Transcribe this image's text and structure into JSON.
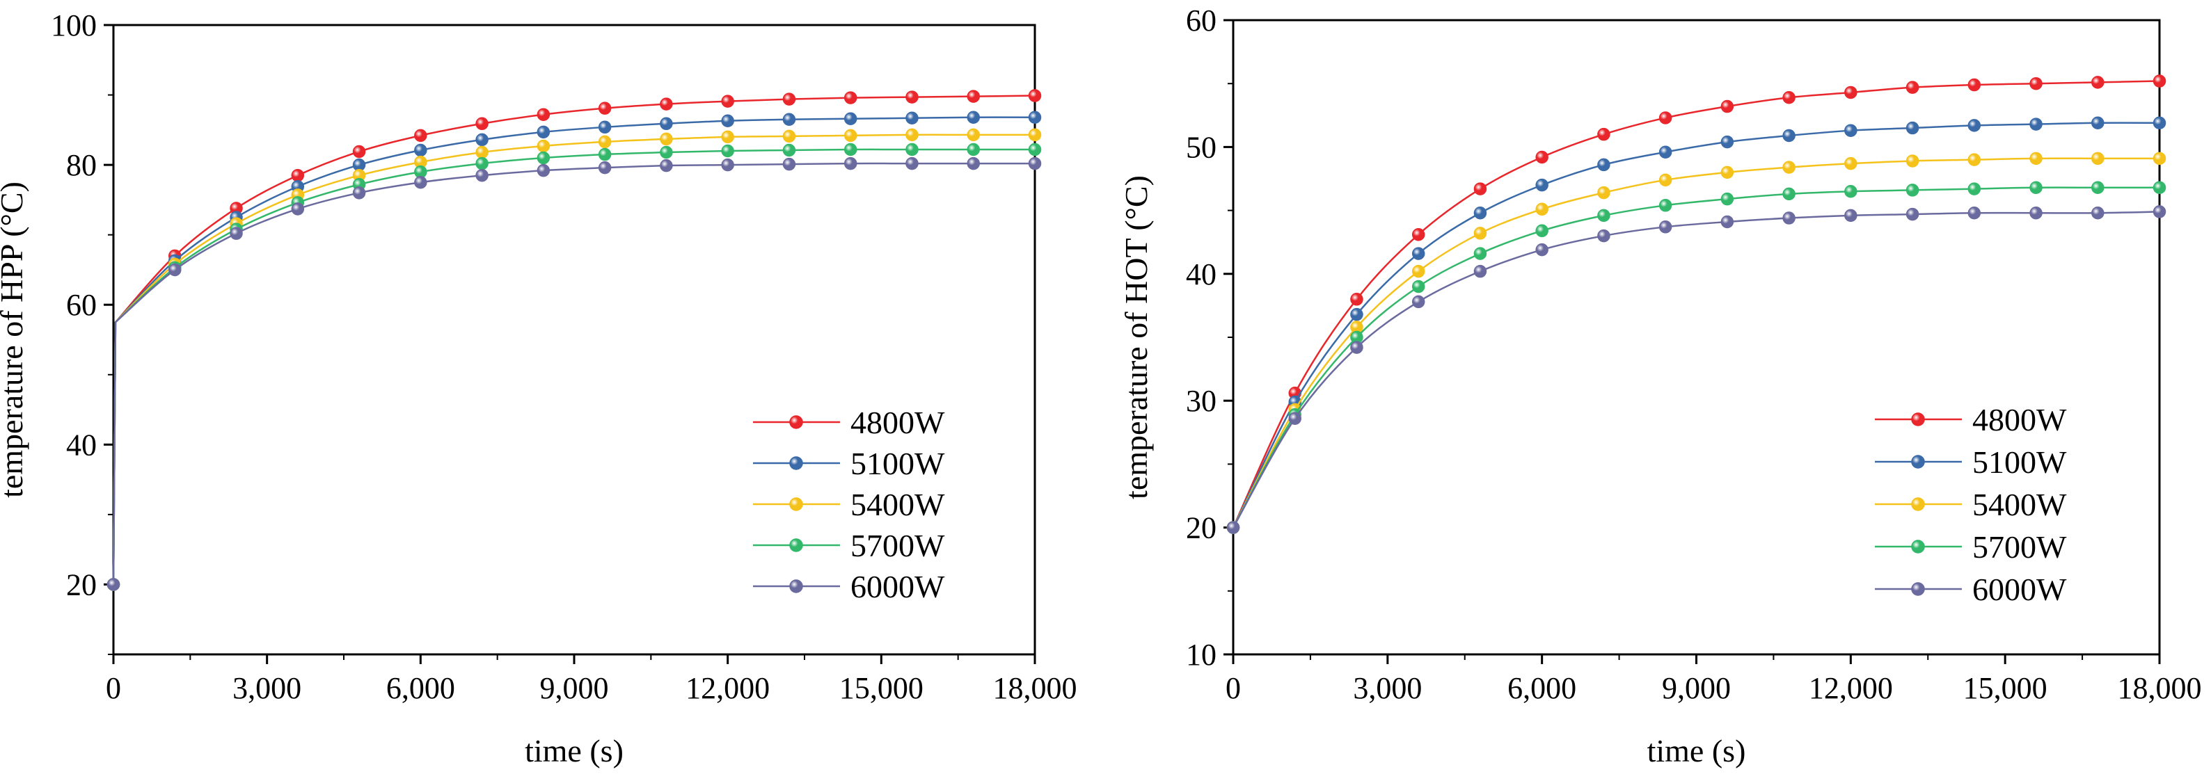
{
  "chart_data": [
    {
      "type": "line",
      "xlabel": "time (s)",
      "ylabel": "temperature of HPP (°C)",
      "xlim": [
        0,
        18000
      ],
      "ylim": [
        10,
        100
      ],
      "xticks": [
        0,
        3000,
        6000,
        9000,
        12000,
        15000,
        18000
      ],
      "xtick_labels": [
        "0",
        "3,000",
        "6,000",
        "9,000",
        "12,000",
        "15,000",
        "18,000"
      ],
      "yticks": [
        20,
        40,
        60,
        80,
        100
      ],
      "ytick_labels": [
        "20",
        "40",
        "60",
        "80",
        "100"
      ],
      "grid": false,
      "legend_position": "lower-right",
      "x": [
        0,
        1200,
        2400,
        3600,
        4800,
        6000,
        7200,
        8400,
        9600,
        10800,
        12000,
        13200,
        14400,
        15600,
        16800,
        18000
      ],
      "series": [
        {
          "name": "4800W",
          "color": "#e8262b",
          "start": [
            0,
            20
          ],
          "jump": [
            40,
            57.5
          ],
          "values": [
            20,
            67.0,
            73.8,
            78.5,
            81.9,
            84.2,
            85.9,
            87.2,
            88.1,
            88.7,
            89.1,
            89.4,
            89.6,
            89.7,
            89.8,
            89.9
          ]
        },
        {
          "name": "5100W",
          "color": "#3a6aa8",
          "start": [
            0,
            20
          ],
          "jump": [
            40,
            57.5
          ],
          "values": [
            20,
            66.3,
            72.5,
            76.9,
            80.0,
            82.1,
            83.6,
            84.7,
            85.4,
            85.9,
            86.3,
            86.5,
            86.6,
            86.7,
            86.8,
            86.8
          ]
        },
        {
          "name": "5400W",
          "color": "#f4c21b",
          "start": [
            0,
            20
          ],
          "jump": [
            40,
            57.5
          ],
          "values": [
            20,
            65.8,
            71.6,
            75.7,
            78.5,
            80.4,
            81.8,
            82.7,
            83.3,
            83.7,
            84.0,
            84.1,
            84.2,
            84.3,
            84.3,
            84.3
          ]
        },
        {
          "name": "5700W",
          "color": "#33b86b",
          "start": [
            0,
            20
          ],
          "jump": [
            40,
            57.5
          ],
          "values": [
            20,
            65.3,
            70.8,
            74.6,
            77.2,
            79.0,
            80.2,
            81.0,
            81.5,
            81.8,
            82.0,
            82.1,
            82.2,
            82.2,
            82.2,
            82.2
          ]
        },
        {
          "name": "6000W",
          "color": "#6b6a9f",
          "start": [
            0,
            20
          ],
          "jump": [
            40,
            57.5
          ],
          "values": [
            20,
            65.0,
            70.2,
            73.7,
            76.0,
            77.5,
            78.5,
            79.2,
            79.6,
            79.9,
            80.0,
            80.1,
            80.2,
            80.2,
            80.2,
            80.2
          ]
        }
      ]
    },
    {
      "type": "line",
      "xlabel": "time (s)",
      "ylabel": "temperature of HOT (°C)",
      "xlim": [
        0,
        18000
      ],
      "ylim": [
        10,
        60
      ],
      "xticks": [
        0,
        3000,
        6000,
        9000,
        12000,
        15000,
        18000
      ],
      "xtick_labels": [
        "0",
        "3,000",
        "6,000",
        "9,000",
        "12,000",
        "15,000",
        "18,000"
      ],
      "yticks": [
        10,
        20,
        30,
        40,
        50,
        60
      ],
      "ytick_labels": [
        "10",
        "20",
        "30",
        "40",
        "50",
        "60"
      ],
      "grid": false,
      "legend_position": "lower-right",
      "x": [
        0,
        1200,
        2400,
        3600,
        4800,
        6000,
        7200,
        8400,
        9600,
        10800,
        12000,
        13200,
        14400,
        15600,
        16800,
        18000
      ],
      "series": [
        {
          "name": "4800W",
          "color": "#e8262b",
          "values": [
            20,
            30.6,
            38.0,
            43.1,
            46.7,
            49.2,
            51.0,
            52.3,
            53.2,
            53.9,
            54.3,
            54.7,
            54.9,
            55.0,
            55.1,
            55.2
          ]
        },
        {
          "name": "5100W",
          "color": "#3a6aa8",
          "values": [
            20,
            29.9,
            36.8,
            41.6,
            44.8,
            47.0,
            48.6,
            49.6,
            50.4,
            50.9,
            51.3,
            51.5,
            51.7,
            51.8,
            51.9,
            51.9
          ]
        },
        {
          "name": "5400W",
          "color": "#f4c21b",
          "values": [
            20,
            29.3,
            35.8,
            40.2,
            43.2,
            45.1,
            46.4,
            47.4,
            48.0,
            48.4,
            48.7,
            48.9,
            49.0,
            49.1,
            49.1,
            49.1
          ]
        },
        {
          "name": "5700W",
          "color": "#33b86b",
          "values": [
            20,
            28.9,
            35.0,
            39.0,
            41.6,
            43.4,
            44.6,
            45.4,
            45.9,
            46.3,
            46.5,
            46.6,
            46.7,
            46.8,
            46.8,
            46.8
          ]
        },
        {
          "name": "6000W",
          "color": "#6b6a9f",
          "values": [
            20,
            28.6,
            34.2,
            37.8,
            40.2,
            41.9,
            43.0,
            43.7,
            44.1,
            44.4,
            44.6,
            44.7,
            44.8,
            44.8,
            44.8,
            44.9
          ]
        }
      ]
    }
  ]
}
